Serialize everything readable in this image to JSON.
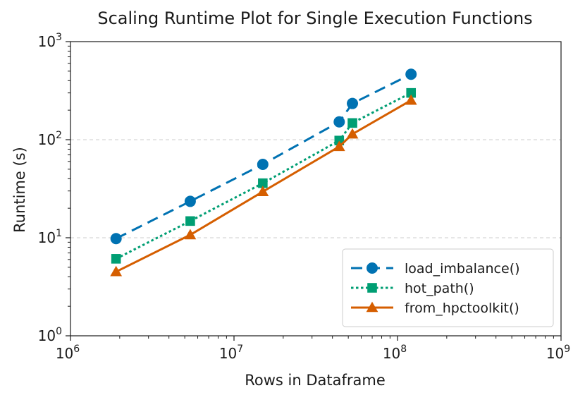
{
  "chart_data": {
    "type": "line",
    "title": "Scaling Runtime Plot for Single Execution Functions",
    "xlabel": "Rows in Dataframe",
    "ylabel": "Runtime (s)",
    "xscale": "log",
    "yscale": "log",
    "xlim": [
      1000000,
      1000000000
    ],
    "ylim": [
      1,
      1000
    ],
    "grid": "y-major-dashed",
    "legend_position": "bottom-right",
    "x_ticks": [
      {
        "value": 1000000,
        "base": "10",
        "exp": "6"
      },
      {
        "value": 10000000,
        "base": "10",
        "exp": "7"
      },
      {
        "value": 100000000,
        "base": "10",
        "exp": "8"
      },
      {
        "value": 1000000000,
        "base": "10",
        "exp": "9"
      }
    ],
    "y_ticks": [
      {
        "value": 1,
        "base": "10",
        "exp": "0"
      },
      {
        "value": 10,
        "base": "10",
        "exp": "1"
      },
      {
        "value": 100,
        "base": "10",
        "exp": "2"
      },
      {
        "value": 1000,
        "base": "10",
        "exp": "3"
      }
    ],
    "x": [
      1900000,
      5400000,
      15000000,
      44000000,
      53000000,
      121000000
    ],
    "series": [
      {
        "name": "load_imbalance()",
        "color": "#0072b2",
        "linestyle": "dashed",
        "marker": "circle",
        "values": [
          9.8,
          23.5,
          56,
          152,
          234,
          465
        ]
      },
      {
        "name": "hot_path()",
        "color": "#009e73",
        "linestyle": "dotted",
        "marker": "square",
        "values": [
          6.1,
          14.8,
          36,
          98,
          148,
          300
        ]
      },
      {
        "name": "from_hpctoolkit()",
        "color": "#d55e00",
        "linestyle": "solid",
        "marker": "triangle",
        "values": [
          4.5,
          10.7,
          29.5,
          85,
          114,
          252
        ]
      }
    ]
  }
}
